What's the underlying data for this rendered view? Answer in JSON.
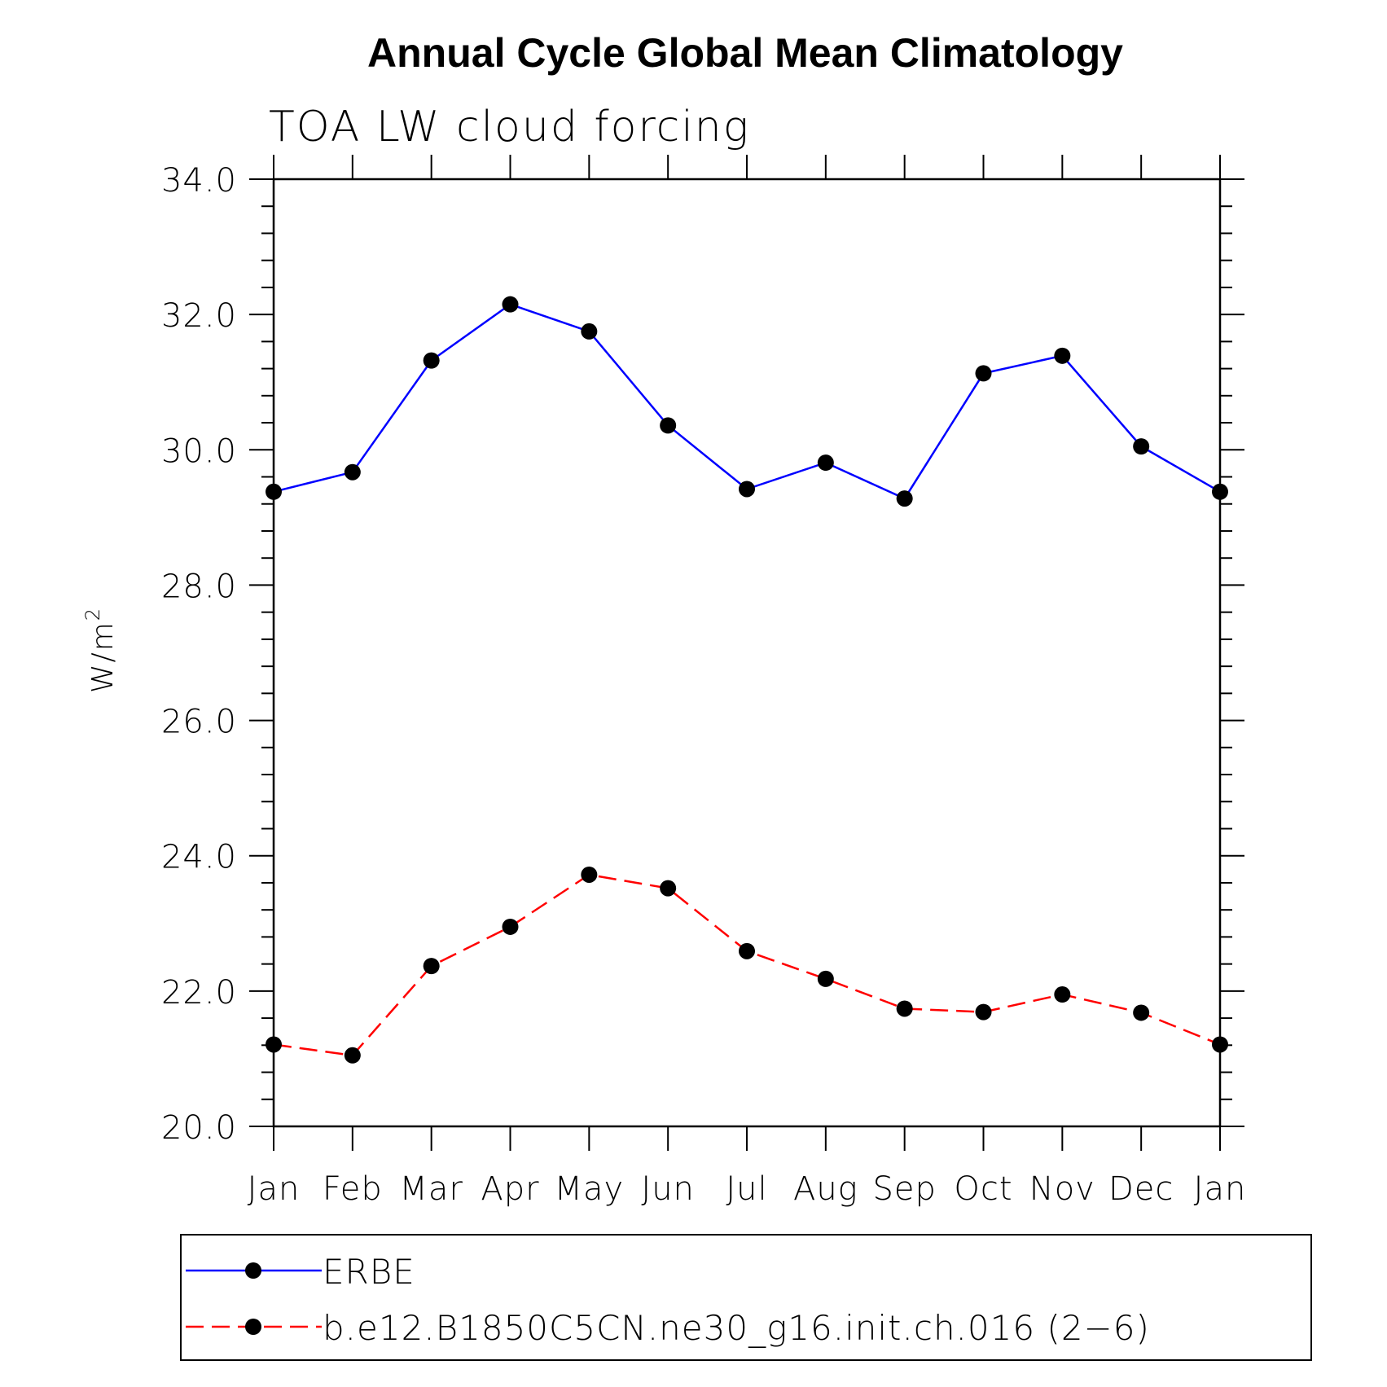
{
  "chart_data": {
    "type": "line",
    "title": "Annual Cycle Global Mean Climatology",
    "subtitle": "TOA LW cloud forcing",
    "ylabel": "W/m",
    "ylabel_superscript": "2",
    "xlabel": "",
    "categories": [
      "Jan",
      "Feb",
      "Mar",
      "Apr",
      "May",
      "Jun",
      "Jul",
      "Aug",
      "Sep",
      "Oct",
      "Nov",
      "Dec",
      "Jan"
    ],
    "ylim": [
      20.0,
      34.0
    ],
    "yticks": [
      "20.0",
      "22.0",
      "24.0",
      "26.0",
      "28.0",
      "30.0",
      "32.0",
      "34.0"
    ],
    "grid": false,
    "legend_position": "bottom",
    "series": [
      {
        "name": "ERBE",
        "color": "#0000ff",
        "dash": "solid",
        "marker": "circle",
        "values": [
          29.38,
          29.67,
          31.32,
          32.15,
          31.75,
          30.36,
          29.42,
          29.81,
          29.28,
          31.13,
          31.39,
          30.05,
          29.38
        ]
      },
      {
        "name": "b.e12.B1850C5CN.ne30_g16.init.ch.016 (2−6)",
        "color": "#ff0000",
        "dash": "dashed",
        "marker": "circle",
        "values": [
          21.21,
          21.05,
          22.37,
          22.95,
          23.72,
          23.52,
          22.59,
          22.18,
          21.74,
          21.69,
          21.95,
          21.68,
          21.21
        ]
      }
    ]
  }
}
